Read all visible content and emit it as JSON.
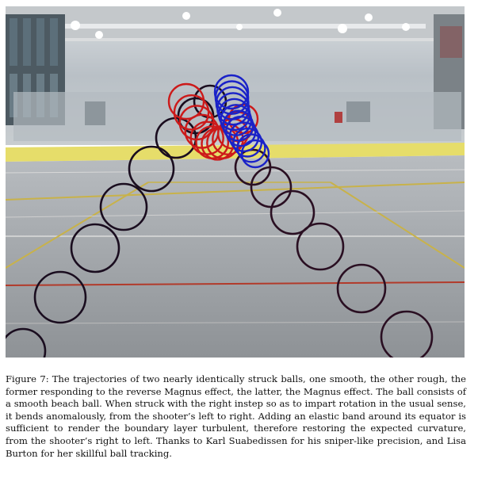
{
  "figure": {
    "label": "Figure 7:",
    "caption": "The trajectories of two nearly identically struck balls, one smooth, the other rough, the former responding to the reverse Magnus effect, the latter, the Magnus effect. The ball consists of a smooth beach ball. When struck with the right instep so as to impart rotation in the usual sense, it bends anomalously, from the shooter’s left to right. Adding an elastic band around its equator is sufficient to render the boundary layer turbulent, therefore restoring the expected curvature, from the shooter’s right to left. Thanks to Karl Suabedissen for his sniper-like precision, and Lisa Burton for her skillful ball tracking.",
    "trajectories": [
      {
        "ball": "smooth",
        "color": "#cc1a1a",
        "curve": "shooter's left to right"
      },
      {
        "ball": "rough",
        "color": "#1a22c8",
        "curve": "shooter's right to left"
      }
    ],
    "colors": {
      "photo_wall": "#b9c0c6",
      "floor": "#9fa3a7",
      "board_band": "#e6dd6a",
      "ring_dark": "#1a0d1f"
    }
  }
}
